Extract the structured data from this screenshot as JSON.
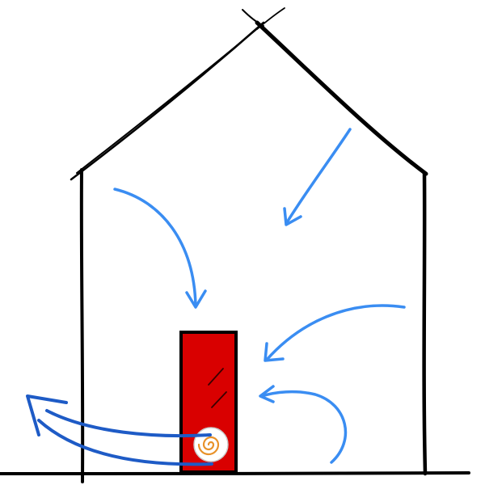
{
  "diagram": {
    "subject": "",
    "colors": {
      "outline": "#000000",
      "unit_body": "#d90000",
      "unit_glass": "#ffffff",
      "fan_ring": "#e8922a",
      "fan_face": "#ffffff",
      "inflow_arrow": "#3a8df2",
      "outflow_arrow": "#1e5bc6"
    },
    "icons": [
      "house-outline",
      "extraction-unit",
      "fan-icon",
      "airflow-arrow"
    ]
  }
}
